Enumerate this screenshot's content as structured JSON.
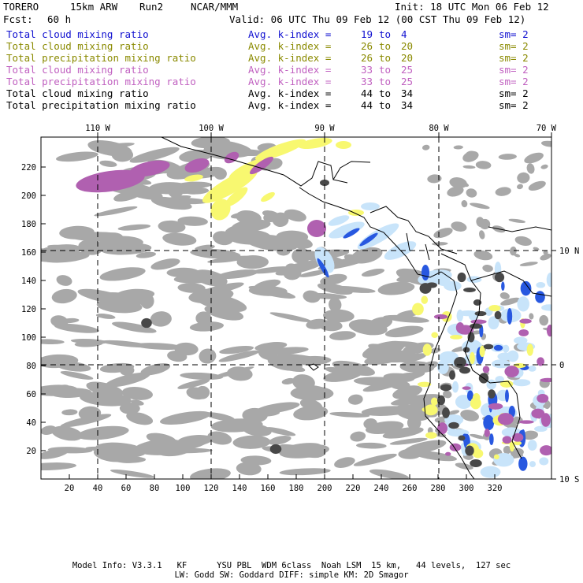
{
  "header": {
    "model": "TORERO",
    "resolution": "15km ARW",
    "run": "Run2",
    "org": "NCAR/MMM",
    "init": "Init: 18 UTC Mon 06 Feb 12",
    "fcst_label": "Fcst:",
    "fcst_value": "60 h",
    "valid": "Valid: 06 UTC Thu 09 Feb 12 (00 CST Thu 09 Feb 12)"
  },
  "legend": [
    {
      "name": "Total cloud mixing ratio",
      "avg": "Avg. k-index =",
      "v1": "19",
      "to": "to",
      "v2": "4",
      "sm": "sm= 2",
      "color": "#1010d0"
    },
    {
      "name": "Total cloud mixing ratio",
      "avg": "Avg. k-index =",
      "v1": "26",
      "to": "to",
      "v2": "20",
      "sm": "sm= 2",
      "color": "#8a8a00"
    },
    {
      "name": "Total precipitation mixing ratio",
      "avg": "Avg. k-index =",
      "v1": "26",
      "to": "to",
      "v2": "20",
      "sm": "sm= 2",
      "color": "#8a8a00"
    },
    {
      "name": "Total cloud mixing ratio",
      "avg": "Avg. k-index =",
      "v1": "33",
      "to": "to",
      "v2": "25",
      "sm": "sm= 2",
      "color": "#c060c0"
    },
    {
      "name": "Total precipitation mixing ratio",
      "avg": "Avg. k-index =",
      "v1": "33",
      "to": "to",
      "v2": "25",
      "sm": "sm= 2",
      "color": "#c060c0"
    },
    {
      "name": "Total cloud mixing ratio",
      "avg": "Avg. k-index =",
      "v1": "44",
      "to": "to",
      "v2": "34",
      "sm": "sm= 2",
      "color": "#000000"
    },
    {
      "name": "Total precipitation mixing ratio",
      "avg": "Avg. k-index =",
      "v1": "44",
      "to": "to",
      "v2": "34",
      "sm": "sm= 2",
      "color": "#000000"
    }
  ],
  "map": {
    "lon_labels": [
      "110 W",
      "100 W",
      "90 W",
      "80 W",
      "70 W"
    ],
    "lat_labels": [
      "10 N",
      "0",
      "10 S"
    ],
    "x_ticks": [
      "20",
      "40",
      "60",
      "80",
      "100",
      "120",
      "140",
      "160",
      "180",
      "200",
      "220",
      "240",
      "260",
      "280",
      "300",
      "320"
    ],
    "y_ticks": [
      "220",
      "200",
      "180",
      "160",
      "140",
      "120",
      "100",
      "80",
      "60",
      "40",
      "20"
    ],
    "colors": {
      "gray": "#a8a8a8",
      "dark_gray": "#484848",
      "light_blue": "#c8e4fa",
      "blue": "#2858e0",
      "yellow": "#f8f870",
      "purple": "#b060b0"
    }
  },
  "footer": {
    "line1": "Model Info: V3.3.1   KF      YSU PBL  WDM 6class  Noah LSM  15 km,   44 levels,  127 sec",
    "line2": "LW: Godd SW: Goddard DIFF: simple KM: 2D Smagor"
  }
}
